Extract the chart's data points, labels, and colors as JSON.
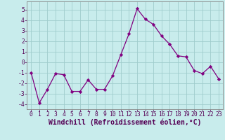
{
  "x": [
    0,
    1,
    2,
    3,
    4,
    5,
    6,
    7,
    8,
    9,
    10,
    11,
    12,
    13,
    14,
    15,
    16,
    17,
    18,
    19,
    20,
    21,
    22,
    23
  ],
  "y": [
    -1,
    -3.9,
    -2.6,
    -1.1,
    -1.2,
    -2.8,
    -2.8,
    -1.7,
    -2.6,
    -2.6,
    -1.3,
    0.7,
    2.7,
    5.1,
    4.1,
    3.6,
    2.5,
    1.7,
    0.6,
    0.5,
    -0.8,
    -1.1,
    -0.4,
    -1.6
  ],
  "line_color": "#800080",
  "bg_color": "#c8ecec",
  "grid_color": "#a0cccc",
  "xlabel": "Windchill (Refroidissement éolien,°C)",
  "ylim": [
    -4.5,
    5.8
  ],
  "xlim": [
    -0.5,
    23.5
  ],
  "yticks": [
    -4,
    -3,
    -2,
    -1,
    0,
    1,
    2,
    3,
    4,
    5
  ],
  "xticks": [
    0,
    1,
    2,
    3,
    4,
    5,
    6,
    7,
    8,
    9,
    10,
    11,
    12,
    13,
    14,
    15,
    16,
    17,
    18,
    19,
    20,
    21,
    22,
    23
  ],
  "marker": "D",
  "markersize": 2.2,
  "linewidth": 0.9,
  "tick_fontsize": 5.8,
  "xlabel_fontsize": 7.0,
  "spine_color": "#888888"
}
